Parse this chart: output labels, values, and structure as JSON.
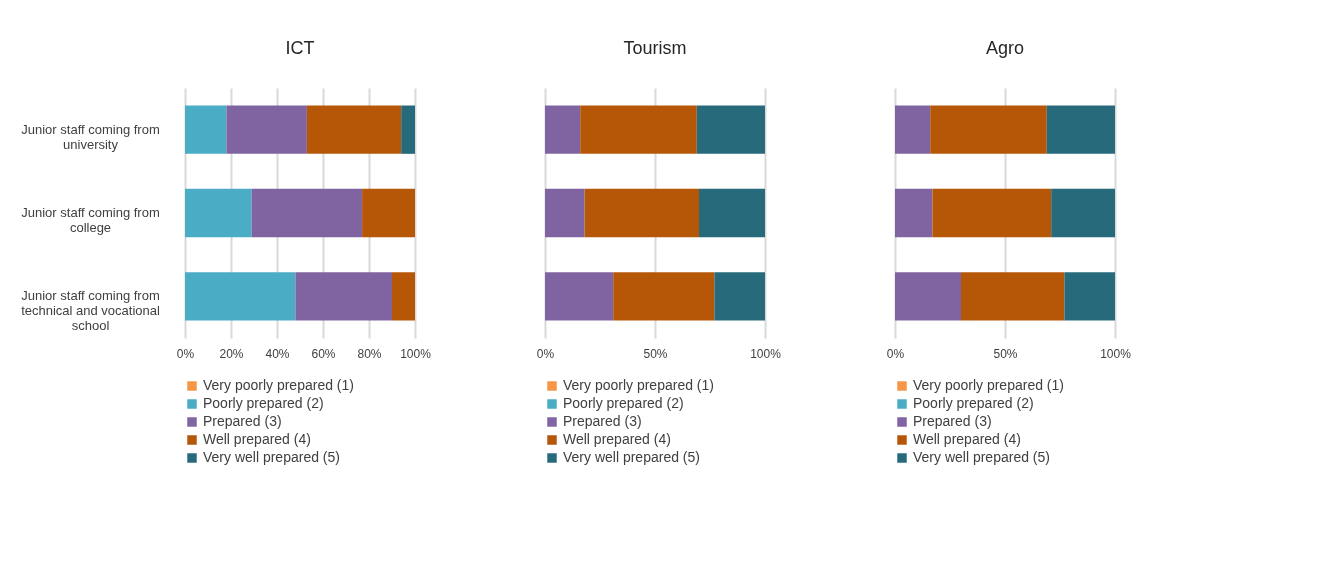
{
  "chart_data": [
    {
      "type": "bar",
      "title": "ICT",
      "orientation": "horizontal",
      "stacked": true,
      "categories": [
        "Junior staff coming from university",
        "Junior staff coming from college",
        "Junior staff coming from technical and vocational school"
      ],
      "xlim": [
        0,
        100
      ],
      "xticks": [
        {
          "value": 0,
          "label": "0%"
        },
        {
          "value": 20,
          "label": "20%"
        },
        {
          "value": 40,
          "label": "40%"
        },
        {
          "value": 60,
          "label": "60%"
        },
        {
          "value": 80,
          "label": "80%"
        },
        {
          "value": 100,
          "label": "100%"
        }
      ],
      "grid": "x",
      "legend": "bottom",
      "series": [
        {
          "name": "Very poorly prepared (1)",
          "color": "#f79646",
          "values": [
            0,
            0,
            0
          ]
        },
        {
          "name": "Poorly prepared (2)",
          "color": "#4bacc6",
          "values": [
            18,
            29,
            48
          ]
        },
        {
          "name": "Prepared (3)",
          "color": "#8064a2",
          "values": [
            35,
            48,
            42
          ]
        },
        {
          "name": "Well prepared (4)",
          "color": "#b65708",
          "values": [
            41,
            23,
            10
          ]
        },
        {
          "name": "Very well prepared (5)",
          "color": "#276a7c",
          "values": [
            6,
            0,
            0
          ]
        }
      ]
    },
    {
      "type": "bar",
      "title": "Tourism",
      "orientation": "horizontal",
      "stacked": true,
      "categories": [
        null,
        null,
        null
      ],
      "tick_labels": "x",
      "xlim": [
        0,
        100
      ],
      "xticks": [
        {
          "value": 0,
          "label": "0%"
        },
        {
          "value": 50,
          "label": "50%"
        },
        {
          "value": 100,
          "label": "100%"
        }
      ],
      "grid": "x",
      "legend": "bottom",
      "series": [
        {
          "name": "Very poorly prepared (1)",
          "color": "#f79646",
          "values": [
            0,
            0,
            0
          ]
        },
        {
          "name": "Poorly prepared (2)",
          "color": "#4bacc6",
          "values": [
            0,
            0,
            0
          ]
        },
        {
          "name": "Prepared (3)",
          "color": "#8064a2",
          "values": [
            16,
            18,
            31
          ]
        },
        {
          "name": "Well prepared (4)",
          "color": "#b65708",
          "values": [
            53,
            52,
            46
          ]
        },
        {
          "name": "Very well prepared (5)",
          "color": "#276a7c",
          "values": [
            31,
            30,
            23
          ]
        }
      ]
    },
    {
      "type": "bar",
      "title": "Agro",
      "orientation": "horizontal",
      "stacked": true,
      "categories": [
        null,
        null,
        null
      ],
      "tick_labels": "x",
      "xlim": [
        0,
        100
      ],
      "xticks": [
        {
          "value": 0,
          "label": "0%"
        },
        {
          "value": 50,
          "label": "50%"
        },
        {
          "value": 100,
          "label": "100%"
        }
      ],
      "grid": "x",
      "legend": "bottom",
      "series": [
        {
          "name": "Very poorly prepared (1)",
          "color": "#f79646",
          "values": [
            0,
            0,
            0
          ]
        },
        {
          "name": "Poorly prepared (2)",
          "color": "#4bacc6",
          "values": [
            0,
            0,
            0
          ]
        },
        {
          "name": "Prepared (3)",
          "color": "#8064a2",
          "values": [
            16,
            17,
            30
          ]
        },
        {
          "name": "Well prepared (4)",
          "color": "#b65708",
          "values": [
            53,
            54,
            47
          ]
        },
        {
          "name": "Very well prepared (5)",
          "color": "#276a7c",
          "values": [
            31,
            29,
            23
          ]
        }
      ]
    }
  ]
}
